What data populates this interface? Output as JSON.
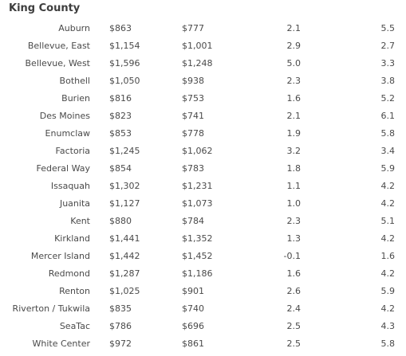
{
  "section_title": "King County",
  "rows": [
    {
      "area": "Auburn",
      "col1": "$863",
      "col2": "$777",
      "col3": "2.1",
      "col4": "5.5"
    },
    {
      "area": "Bellevue, East",
      "col1": "$1,154",
      "col2": "$1,001",
      "col3": "2.9",
      "col4": "2.7"
    },
    {
      "area": "Bellevue, West",
      "col1": "$1,596",
      "col2": "$1,248",
      "col3": "5.0",
      "col4": "3.3"
    },
    {
      "area": "Bothell",
      "col1": "$1,050",
      "col2": "$938",
      "col3": "2.3",
      "col4": "3.8"
    },
    {
      "area": "Burien",
      "col1": "$816",
      "col2": "$753",
      "col3": "1.6",
      "col4": "5.2"
    },
    {
      "area": "Des Moines",
      "col1": "$823",
      "col2": "$741",
      "col3": "2.1",
      "col4": "6.1"
    },
    {
      "area": "Enumclaw",
      "col1": "$853",
      "col2": "$778",
      "col3": "1.9",
      "col4": "5.8"
    },
    {
      "area": "Factoria",
      "col1": "$1,245",
      "col2": "$1,062",
      "col3": "3.2",
      "col4": "3.4"
    },
    {
      "area": "Federal Way",
      "col1": "$854",
      "col2": "$783",
      "col3": "1.8",
      "col4": "5.9"
    },
    {
      "area": "Issaquah",
      "col1": "$1,302",
      "col2": "$1,231",
      "col3": "1.1",
      "col4": "4.2"
    },
    {
      "area": "Juanita",
      "col1": "$1,127",
      "col2": "$1,073",
      "col3": "1.0",
      "col4": "4.2"
    },
    {
      "area": "Kent",
      "col1": "$880",
      "col2": "$784",
      "col3": "2.3",
      "col4": "5.1"
    },
    {
      "area": "Kirkland",
      "col1": "$1,441",
      "col2": "$1,352",
      "col3": "1.3",
      "col4": "4.2"
    },
    {
      "area": "Mercer Island",
      "col1": "$1,442",
      "col2": "$1,452",
      "col3": "-0.1",
      "col4": "1.6"
    },
    {
      "area": "Redmond",
      "col1": "$1,287",
      "col2": "$1,186",
      "col3": "1.6",
      "col4": "4.2"
    },
    {
      "area": "Renton",
      "col1": "$1,025",
      "col2": "$901",
      "col3": "2.6",
      "col4": "5.9"
    },
    {
      "area": "Riverton / Tukwila",
      "col1": "$835",
      "col2": "$740",
      "col3": "2.4",
      "col4": "4.2"
    },
    {
      "area": "SeaTac",
      "col1": "$786",
      "col2": "$696",
      "col3": "2.5",
      "col4": "4.3"
    },
    {
      "area": "White Center",
      "col1": "$972",
      "col2": "$861",
      "col3": "2.5",
      "col4": "5.8"
    }
  ]
}
